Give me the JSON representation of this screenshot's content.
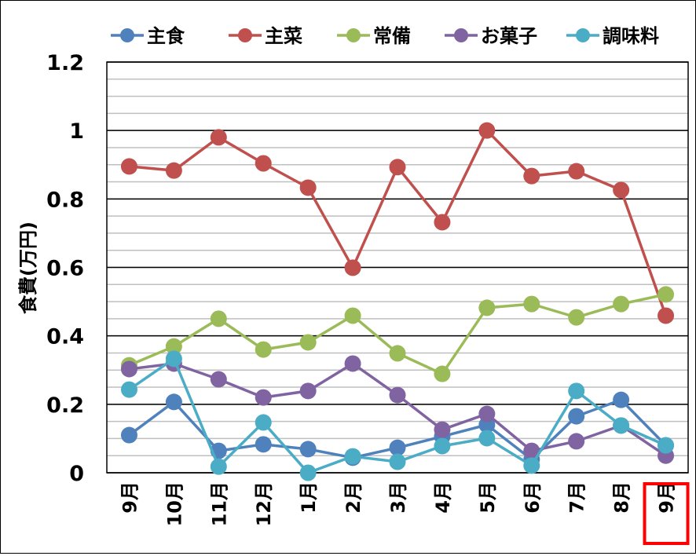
{
  "chart_data": {
    "type": "line",
    "title": "",
    "xlabel": "",
    "ylabel": "食費(万円)",
    "ylim": [
      0,
      1.2
    ],
    "yticks": [
      "0",
      "0.2",
      "0.4",
      "0.6",
      "0.8",
      "1",
      "1.2"
    ],
    "ytick_values": [
      0,
      0.2,
      0.4,
      0.6,
      0.8,
      1.0,
      1.2
    ],
    "minor_grid_step": 0.05,
    "grid": true,
    "legend_position": "top",
    "categories": [
      "9月",
      "10月",
      "11月",
      "12月",
      "1月",
      "2月",
      "3月",
      "4月",
      "5月",
      "6月",
      "7月",
      "8月",
      "9月"
    ],
    "highlighted_category_index": 12,
    "highlight_color": "#ff0000",
    "series": [
      {
        "name": "主食",
        "color": "#4f81bd",
        "values": [
          0.11,
          0.207,
          0.064,
          0.083,
          0.069,
          0.044,
          0.073,
          0.106,
          0.14,
          0.039,
          0.165,
          0.213,
          0.08
        ]
      },
      {
        "name": "主菜",
        "color": "#c0504d",
        "values": [
          0.895,
          0.883,
          0.98,
          0.904,
          0.833,
          0.599,
          0.893,
          0.732,
          1.0,
          0.867,
          0.881,
          0.826,
          0.459
        ]
      },
      {
        "name": "常備",
        "color": "#9bbb59",
        "values": [
          0.314,
          0.369,
          0.45,
          0.36,
          0.381,
          0.459,
          0.349,
          0.289,
          0.482,
          0.493,
          0.454,
          0.493,
          0.521
        ]
      },
      {
        "name": "お菓子",
        "color": "#8064a2",
        "values": [
          0.303,
          0.319,
          0.273,
          0.22,
          0.239,
          0.319,
          0.227,
          0.126,
          0.172,
          0.064,
          0.092,
          0.138,
          0.05
        ]
      },
      {
        "name": "調味料",
        "color": "#4bacc6",
        "values": [
          0.243,
          0.333,
          0.018,
          0.147,
          0.0,
          0.048,
          0.032,
          0.078,
          0.101,
          0.021,
          0.239,
          0.138,
          0.08
        ]
      }
    ]
  }
}
